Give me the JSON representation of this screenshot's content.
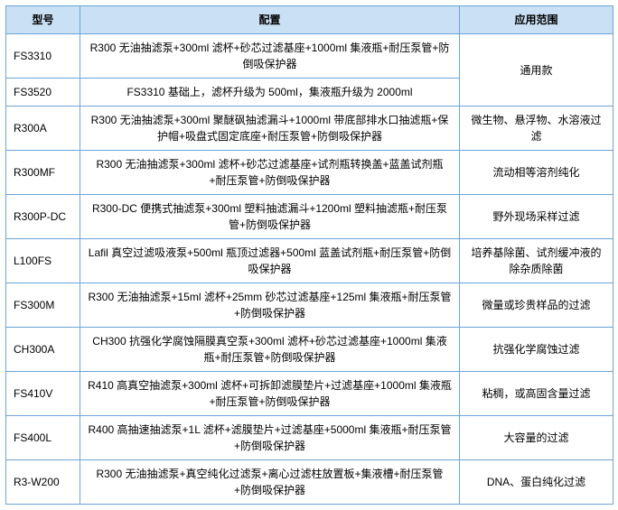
{
  "table": {
    "headers": {
      "model": "型号",
      "config": "配置",
      "app": "应用范围"
    },
    "rows": [
      {
        "model": "FS3310",
        "config": "R300 无油抽滤泵+300ml 滤杯+砂芯过滤基座+1000ml 集液瓶+耐压泵管+防倒吸保护器",
        "app": "通用款",
        "app_rowspan": 2
      },
      {
        "model": "FS3520",
        "config": "FS3310 基础上，滤杯升级为 500ml，集液瓶升级为 2000ml"
      },
      {
        "model": "R300A",
        "config": "R300 无油抽滤泵+300ml 聚醚砜抽滤漏斗+1000ml 带底部排水口抽滤瓶+保护帽+吸盘式固定底座+耐压泵管+防倒吸保护器",
        "app": "微生物、悬浮物、水溶液过滤"
      },
      {
        "model": "R300MF",
        "config": "R300 无油抽滤泵+300ml 滤杯+砂芯过滤基座+试剂瓶转换盖+蓝盖试剂瓶+耐压泵管+防倒吸保护器",
        "app": "流动相等溶剂纯化"
      },
      {
        "model": "R300P-DC",
        "config": "R300-DC 便携式抽滤泵+300ml 塑料抽滤漏斗+1200ml 塑料抽滤瓶+耐压泵管+防倒吸保护器",
        "app": "野外现场采样过滤"
      },
      {
        "model": "L100FS",
        "config": "Lafil 真空过滤吸液泵+500ml 瓶顶过滤器+500ml 蓝盖试剂瓶+耐压泵管+防倒吸保护器",
        "app": "培养基除菌、试剂缓冲液的除杂质除菌"
      },
      {
        "model": "FS300M",
        "config": "R300 无油抽滤泵+15ml 滤杯+25mm 砂芯过滤基座+125ml 集液瓶+耐压泵管+防倒吸保护器",
        "app": "微量或珍贵样品的过滤"
      },
      {
        "model": "CH300A",
        "config": "CH300 抗强化学腐蚀隔膜真空泵+300ml 滤杯+砂芯过滤基座+1000ml 集液瓶+耐压泵管+防倒吸保护器",
        "app": "抗强化学腐蚀过滤"
      },
      {
        "model": "FS410V",
        "config": "R410 高真空抽滤泵+300ml 滤杯+可拆卸滤膜垫片+过滤基座+1000ml 集液瓶+耐压泵管+防倒吸保护器",
        "app": "粘稠，或高固含量过滤"
      },
      {
        "model": "FS400L",
        "config": "R400 高抽速抽滤泵+1L 滤杯+滤膜垫片+过滤基座+5000ml 集液瓶+耐压泵管+防倒吸保护器",
        "app": "大容量的过滤"
      },
      {
        "model": "R3-W200",
        "config": "R300 无油抽滤泵+真空纯化过滤泵+离心过滤柱放置板+集液槽+耐压泵管+防倒吸保护器",
        "app": "DNA、蛋白纯化过滤"
      }
    ]
  },
  "style": {
    "header_bg": "#c9e0f5",
    "border_color": "#6aa4d9",
    "font_size": 12
  }
}
